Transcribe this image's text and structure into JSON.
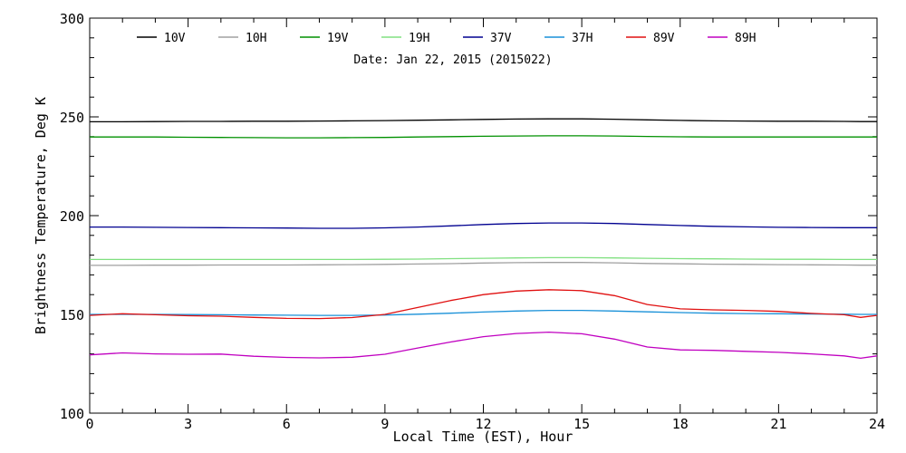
{
  "chart_data": {
    "type": "line",
    "title": "Date: Jan 22, 2015 (2015022)",
    "xlabel": "Local Time (EST), Hour",
    "ylabel": "Brightness Temperature, Deg K",
    "xlim": [
      0,
      24
    ],
    "ylim": [
      100,
      300
    ],
    "xticks": [
      0,
      3,
      6,
      9,
      12,
      15,
      18,
      21,
      24
    ],
    "yticks": [
      100,
      150,
      200,
      250,
      300
    ],
    "grid": false,
    "legend_position": "top",
    "x": [
      0,
      1,
      2,
      3,
      4,
      5,
      6,
      7,
      8,
      9,
      10,
      11,
      12,
      13,
      14,
      15,
      16,
      17,
      18,
      19,
      20,
      21,
      22,
      23,
      23.5,
      24
    ],
    "series": [
      {
        "name": "10V",
        "color": "#000000",
        "values": [
          247.5,
          247.5,
          247.6,
          247.7,
          247.7,
          247.8,
          247.8,
          247.9,
          248.0,
          248.1,
          248.3,
          248.5,
          248.7,
          248.9,
          249.0,
          249.0,
          248.8,
          248.5,
          248.2,
          248.0,
          247.9,
          247.8,
          247.8,
          247.7,
          247.6,
          247.6
        ]
      },
      {
        "name": "10H",
        "color": "#a0a0a0",
        "values": [
          174.8,
          174.8,
          174.9,
          174.9,
          175.0,
          175.0,
          175.0,
          175.1,
          175.2,
          175.3,
          175.5,
          175.7,
          176.0,
          176.2,
          176.3,
          176.3,
          176.1,
          175.8,
          175.6,
          175.4,
          175.3,
          175.2,
          175.1,
          175.0,
          174.9,
          174.9
        ]
      },
      {
        "name": "19V",
        "color": "#009000",
        "values": [
          239.8,
          239.8,
          239.8,
          239.7,
          239.6,
          239.5,
          239.4,
          239.4,
          239.5,
          239.6,
          239.8,
          240.0,
          240.2,
          240.3,
          240.4,
          240.4,
          240.3,
          240.1,
          239.9,
          239.8,
          239.8,
          239.8,
          239.8,
          239.8,
          239.8,
          239.8
        ]
      },
      {
        "name": "19H",
        "color": "#80e080",
        "values": [
          177.8,
          177.8,
          177.8,
          177.8,
          177.8,
          177.8,
          177.8,
          177.8,
          177.8,
          177.9,
          178.0,
          178.2,
          178.4,
          178.6,
          178.7,
          178.7,
          178.6,
          178.4,
          178.2,
          178.1,
          178.0,
          177.9,
          177.9,
          177.8,
          177.8,
          177.8
        ]
      },
      {
        "name": "37V",
        "color": "#000090",
        "values": [
          194.2,
          194.2,
          194.1,
          194.0,
          193.9,
          193.8,
          193.7,
          193.6,
          193.6,
          193.8,
          194.2,
          194.8,
          195.5,
          196.0,
          196.3,
          196.3,
          196.0,
          195.5,
          195.0,
          194.6,
          194.3,
          194.1,
          194.0,
          193.9,
          193.9,
          193.9
        ]
      },
      {
        "name": "37H",
        "color": "#1890d8",
        "values": [
          150.0,
          150.0,
          150.0,
          149.9,
          149.8,
          149.7,
          149.6,
          149.5,
          149.5,
          149.7,
          150.1,
          150.6,
          151.2,
          151.7,
          152.0,
          152.0,
          151.7,
          151.3,
          150.9,
          150.6,
          150.4,
          150.3,
          150.2,
          150.1,
          150.0,
          150.0
        ]
      },
      {
        "name": "89V",
        "color": "#e01010",
        "values": [
          149.5,
          150.3,
          149.8,
          149.3,
          149.1,
          148.5,
          148.0,
          147.9,
          148.4,
          150.0,
          153.5,
          157.0,
          160.0,
          161.8,
          162.5,
          162.0,
          159.5,
          155.0,
          152.8,
          152.3,
          152.0,
          151.5,
          150.5,
          149.8,
          148.5,
          149.5
        ]
      },
      {
        "name": "89H",
        "color": "#c000c0",
        "values": [
          129.5,
          130.5,
          130.0,
          129.8,
          129.9,
          128.8,
          128.2,
          128.0,
          128.3,
          129.8,
          133.0,
          136.0,
          138.7,
          140.3,
          141.0,
          140.2,
          137.5,
          133.5,
          132.0,
          131.8,
          131.3,
          130.8,
          130.0,
          129.0,
          127.8,
          129.0
        ]
      }
    ]
  }
}
